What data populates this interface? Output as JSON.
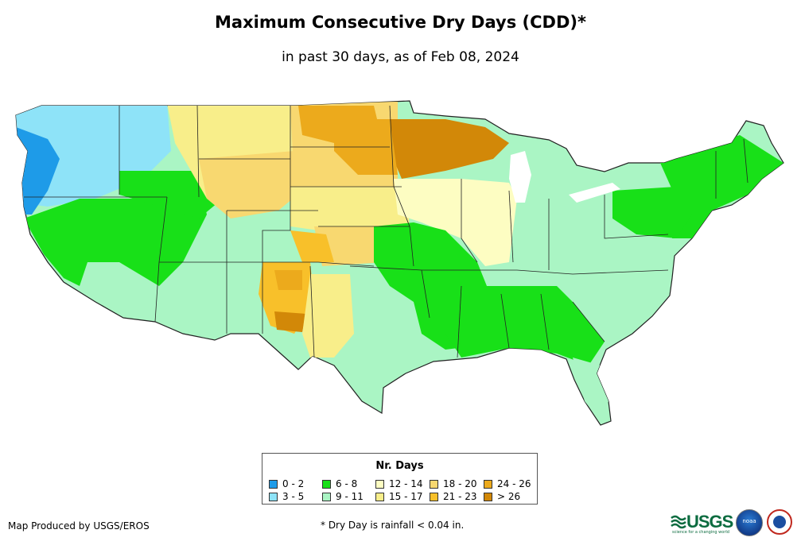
{
  "title": "Maximum Consecutive Dry Days (CDD)*",
  "subtitle": "in past 30 days, as of Feb 08, 2024",
  "legend": {
    "title": "Nr. Days",
    "items": [
      {
        "label": "0 - 2",
        "color": "#1e9be8"
      },
      {
        "label": "3 - 5",
        "color": "#8ee3f8"
      },
      {
        "label": "6 - 8",
        "color": "#18e018"
      },
      {
        "label": "9 - 11",
        "color": "#aaf5c4"
      },
      {
        "label": "12 - 14",
        "color": "#fdfdc2"
      },
      {
        "label": "15 - 17",
        "color": "#f8ee8a"
      },
      {
        "label": "18 - 20",
        "color": "#f8d870"
      },
      {
        "label": "21 - 23",
        "color": "#f8c02a"
      },
      {
        "label": "24 - 26",
        "color": "#ecaa1c"
      },
      {
        "label": "> 26",
        "color": "#d28808"
      }
    ]
  },
  "footer": {
    "producer": "Map Produced by USGS/EROS",
    "note": "* Dry Day is rainfall < 0.04 in."
  },
  "logos": {
    "usgs": "USGS",
    "usgs_tagline": "science for a changing world",
    "noaa": "noaa"
  }
}
